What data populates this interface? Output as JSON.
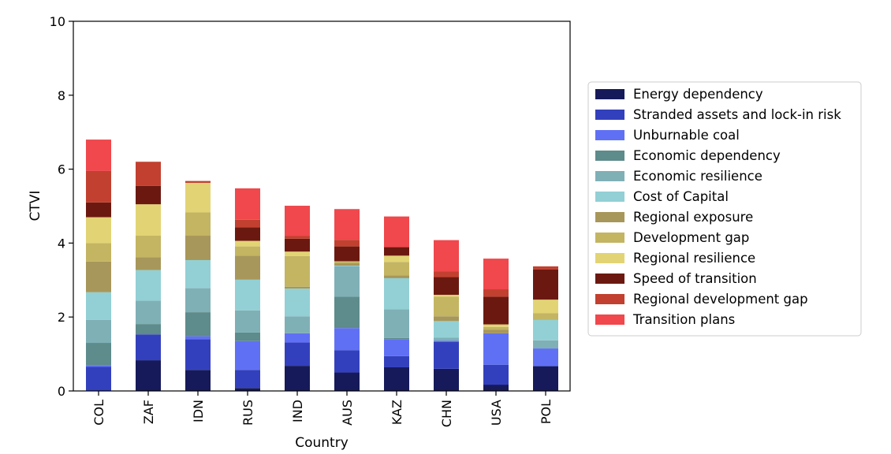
{
  "chart_data": {
    "type": "bar",
    "stacked": true,
    "xlabel": "Country",
    "ylabel": "CTVI",
    "ylim": [
      0,
      10
    ],
    "yticks": [
      "0",
      "2",
      "4",
      "6",
      "8",
      "10"
    ],
    "legend_position": "right",
    "grid": false,
    "categories": [
      "COL",
      "ZAF",
      "IDN",
      "RUS",
      "IND",
      "AUS",
      "KAZ",
      "CHN",
      "USA",
      "POL"
    ],
    "series": [
      {
        "name": "Energy dependency",
        "color": "#161a5a",
        "values": [
          0.0,
          0.83,
          0.57,
          0.08,
          0.68,
          0.5,
          0.64,
          0.6,
          0.17,
          0.67
        ]
      },
      {
        "name": "Stranded assets and lock-in risk",
        "color": "#3340bd",
        "values": [
          0.65,
          0.7,
          0.83,
          0.49,
          0.63,
          0.6,
          0.3,
          0.73,
          0.54,
          0.0
        ]
      },
      {
        "name": "Unburnable coal",
        "color": "#6070f5",
        "values": [
          0.05,
          0.0,
          0.08,
          0.78,
          0.25,
          0.6,
          0.46,
          0.03,
          0.85,
          0.48
        ]
      },
      {
        "name": "Economic dependency",
        "color": "#5e8b8b",
        "values": [
          0.6,
          0.28,
          0.65,
          0.23,
          0.0,
          0.85,
          0.03,
          0.0,
          0.0,
          0.0
        ]
      },
      {
        "name": "Economic resilience",
        "color": "#7fb0b6",
        "values": [
          0.62,
          0.63,
          0.65,
          0.6,
          0.46,
          0.82,
          0.78,
          0.08,
          0.0,
          0.22
        ]
      },
      {
        "name": "Cost of Capital",
        "color": "#92d0d5",
        "values": [
          0.75,
          0.83,
          0.76,
          0.83,
          0.75,
          0.02,
          0.84,
          0.45,
          0.0,
          0.55
        ]
      },
      {
        "name": "Regional exposure",
        "color": "#a8975a",
        "values": [
          0.83,
          0.35,
          0.66,
          0.65,
          0.05,
          0.07,
          0.08,
          0.13,
          0.1,
          0.0
        ]
      },
      {
        "name": "Development gap",
        "color": "#c3b562",
        "values": [
          0.5,
          0.58,
          0.63,
          0.25,
          0.83,
          0.05,
          0.36,
          0.53,
          0.07,
          0.18
        ]
      },
      {
        "name": "Regional resilience",
        "color": "#e2d474",
        "values": [
          0.7,
          0.85,
          0.8,
          0.15,
          0.12,
          0.0,
          0.17,
          0.05,
          0.07,
          0.37
        ]
      },
      {
        "name": "Speed of transition",
        "color": "#6b1910",
        "values": [
          0.4,
          0.5,
          0.0,
          0.37,
          0.35,
          0.4,
          0.23,
          0.48,
          0.75,
          0.82
        ]
      },
      {
        "name": "Regional development gap",
        "color": "#c2402f",
        "values": [
          0.85,
          0.65,
          0.05,
          0.2,
          0.07,
          0.18,
          0.0,
          0.15,
          0.2,
          0.08
        ]
      },
      {
        "name": "Transition plans",
        "color": "#f0484c",
        "values": [
          0.85,
          0.0,
          0.0,
          0.85,
          0.82,
          0.83,
          0.83,
          0.85,
          0.83,
          0.0
        ]
      }
    ]
  }
}
